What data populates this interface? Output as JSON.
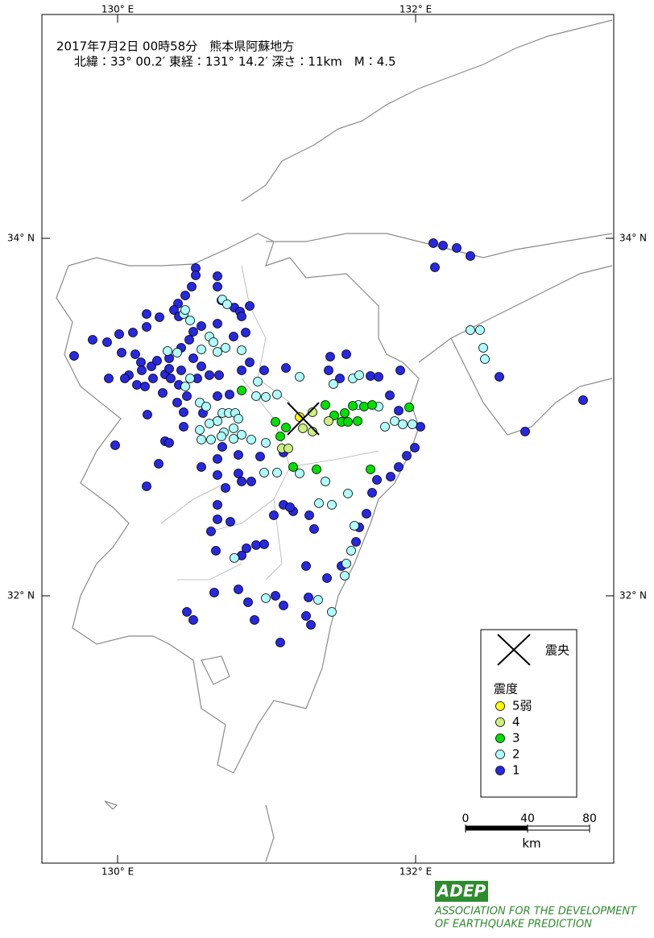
{
  "map": {
    "header": {
      "line1": "2017年7月2日 00時58分　熊本県阿蘇地方",
      "line2": "北緯：33° 00.2′ 東経：131° 14.2′ 深さ：11km　M：4.5"
    },
    "lon_ticks": [
      {
        "value": 130,
        "label": "130° E"
      },
      {
        "value": 132,
        "label": "132° E"
      }
    ],
    "lat_ticks": [
      {
        "value": 34,
        "label": "34° N"
      },
      {
        "value": 32,
        "label": "32° N"
      }
    ],
    "epicenter_label": "震央",
    "legend": {
      "title": "震度",
      "items": [
        {
          "label": "5弱",
          "color": "#ffff00"
        },
        {
          "label": "4",
          "color": "#ccf080"
        },
        {
          "label": "3",
          "color": "#00e000"
        },
        {
          "label": "2",
          "color": "#b0ffff"
        },
        {
          "label": "1",
          "color": "#2828e0"
        }
      ]
    },
    "scale": {
      "ticks": [
        0,
        40,
        80
      ],
      "unit": "km"
    },
    "footer": {
      "logo": "ADEP",
      "org_line1": "ASSOCIATION FOR THE DEVELOPMENT",
      "org_line2": "OF EARTHQUAKE PREDICTION"
    }
  }
}
